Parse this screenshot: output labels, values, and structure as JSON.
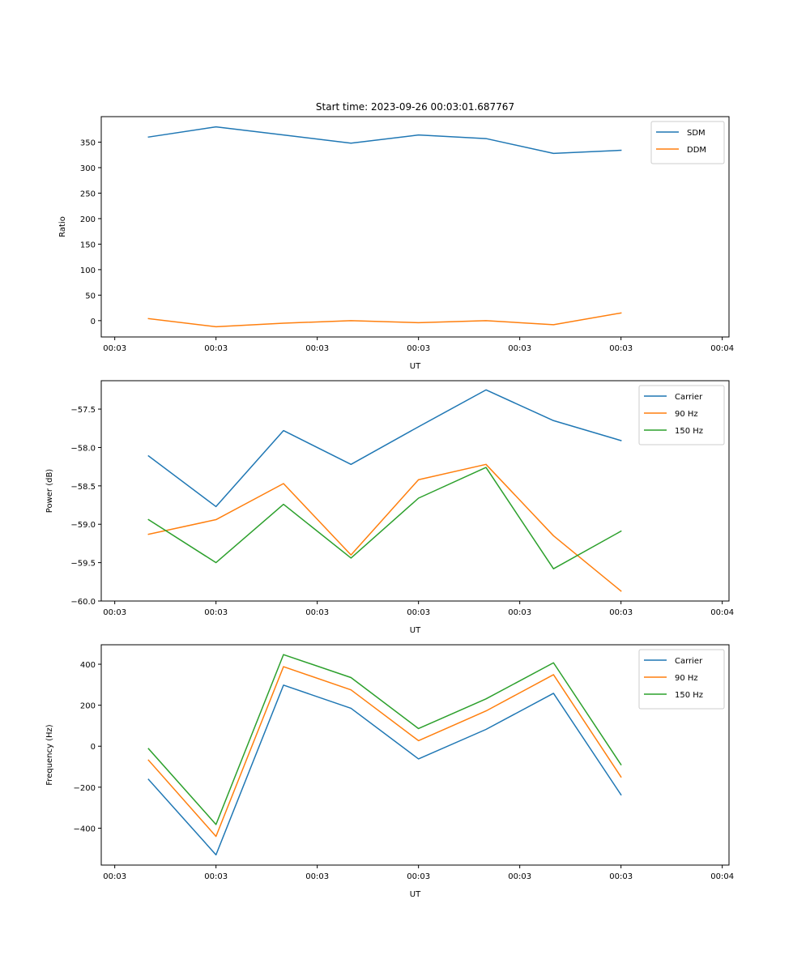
{
  "chart_data": [
    {
      "type": "line",
      "title": "Start time: 2023-09-26 00:03:01.687767",
      "xlabel": "UT",
      "ylabel": "Ratio",
      "x": [
        1,
        2,
        3,
        4,
        5,
        6,
        7,
        8
      ],
      "xlim": [
        0.3,
        9.6
      ],
      "xticks": [
        0.5,
        2,
        3.5,
        5,
        6.5,
        8,
        9.5
      ],
      "xtick_labels": [
        "00:03",
        "00:03",
        "00:03",
        "00:03",
        "00:03",
        "00:03",
        "00:04"
      ],
      "ylim": [
        -32,
        400
      ],
      "yticks": [
        0,
        50,
        100,
        150,
        200,
        250,
        300,
        350
      ],
      "ytick_labels": [
        "0",
        "50",
        "100",
        "150",
        "200",
        "250",
        "300",
        "350"
      ],
      "legend": "top-right",
      "series": [
        {
          "name": "SDM",
          "color": "#1f77b4",
          "values": [
            360,
            380,
            364,
            348,
            364,
            357,
            328,
            334
          ]
        },
        {
          "name": "DDM",
          "color": "#ff7f0e",
          "values": [
            4,
            -12,
            -5,
            0,
            -4,
            0,
            -8,
            15
          ]
        }
      ]
    },
    {
      "type": "line",
      "title": "",
      "xlabel": "UT",
      "ylabel": "Power (dB)",
      "x": [
        1,
        2,
        3,
        4,
        5,
        6,
        7,
        8
      ],
      "xlim": [
        0.3,
        9.6
      ],
      "xticks": [
        0.5,
        2,
        3.5,
        5,
        6.5,
        8,
        9.5
      ],
      "xtick_labels": [
        "00:03",
        "00:03",
        "00:03",
        "00:03",
        "00:03",
        "00:03",
        "00:04"
      ],
      "ylim": [
        -60.0,
        -57.13
      ],
      "yticks": [
        -60.0,
        -59.5,
        -59.0,
        -58.5,
        -58.0,
        -57.5
      ],
      "ytick_labels": [
        "−60.0",
        "−59.5",
        "−59.0",
        "−58.5",
        "−58.0",
        "−57.5"
      ],
      "legend": "top-right",
      "series": [
        {
          "name": "Carrier",
          "color": "#1f77b4",
          "values": [
            -58.11,
            -58.77,
            -57.78,
            -58.22,
            -57.73,
            -57.25,
            -57.65,
            -57.91
          ]
        },
        {
          "name": "90 Hz",
          "color": "#ff7f0e",
          "values": [
            -59.13,
            -58.94,
            -58.47,
            -59.4,
            -58.42,
            -58.22,
            -59.15,
            -59.87
          ]
        },
        {
          "name": "150 Hz",
          "color": "#2ca02c",
          "values": [
            -58.94,
            -59.5,
            -58.74,
            -59.44,
            -58.66,
            -58.26,
            -59.58,
            -59.09
          ]
        }
      ]
    },
    {
      "type": "line",
      "title": "",
      "xlabel": "UT",
      "ylabel": "Frequency (Hz)",
      "x": [
        1,
        2,
        3,
        4,
        5,
        6,
        7,
        8
      ],
      "xlim": [
        0.3,
        9.6
      ],
      "xticks": [
        0.5,
        2,
        3.5,
        5,
        6.5,
        8,
        9.5
      ],
      "xtick_labels": [
        "00:03",
        "00:03",
        "00:03",
        "00:03",
        "00:03",
        "00:03",
        "00:04"
      ],
      "ylim": [
        -580,
        495
      ],
      "yticks": [
        -400,
        -200,
        0,
        200,
        400
      ],
      "ytick_labels": [
        "−400",
        "−200",
        "0",
        "200",
        "400"
      ],
      "legend": "top-right",
      "series": [
        {
          "name": "Carrier",
          "color": "#1f77b4",
          "values": [
            -162,
            -530,
            298,
            185,
            -62,
            82,
            258,
            -237
          ]
        },
        {
          "name": "90 Hz",
          "color": "#ff7f0e",
          "values": [
            -68,
            -440,
            388,
            275,
            27,
            172,
            349,
            -150
          ]
        },
        {
          "name": "150 Hz",
          "color": "#2ca02c",
          "values": [
            -12,
            -382,
            447,
            335,
            86,
            231,
            407,
            -90
          ]
        }
      ]
    }
  ]
}
